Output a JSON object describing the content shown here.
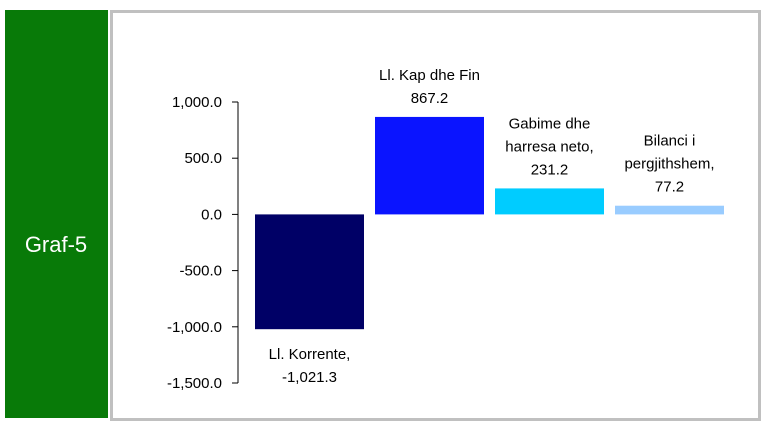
{
  "panel_label": "Graf-5",
  "chart_data": {
    "type": "bar",
    "categories": [
      "Ll. Korrente,",
      "Ll. Kap dhe Fin",
      "Gabime dhe harresa neto,",
      "Bilanci i pergjithshem,"
    ],
    "values": [
      -1021.3,
      867.2,
      231.2,
      77.2
    ],
    "value_labels": [
      "-1,021.3",
      "867.2",
      "231.2",
      "77.2"
    ],
    "colors": [
      "#000066",
      "#0a14ff",
      "#00ccff",
      "#99ccff"
    ],
    "ylim": [
      -1500,
      1000
    ],
    "yticks": [
      {
        "value": -1500,
        "label": "-1,500.0"
      },
      {
        "value": -1000,
        "label": "-1,000.0"
      },
      {
        "value": -500,
        "label": "-500.0"
      },
      {
        "value": 0,
        "label": "0.0"
      },
      {
        "value": 500,
        "label": "500.0"
      },
      {
        "value": 1000,
        "label": "1,000.0"
      }
    ],
    "grid": false
  }
}
